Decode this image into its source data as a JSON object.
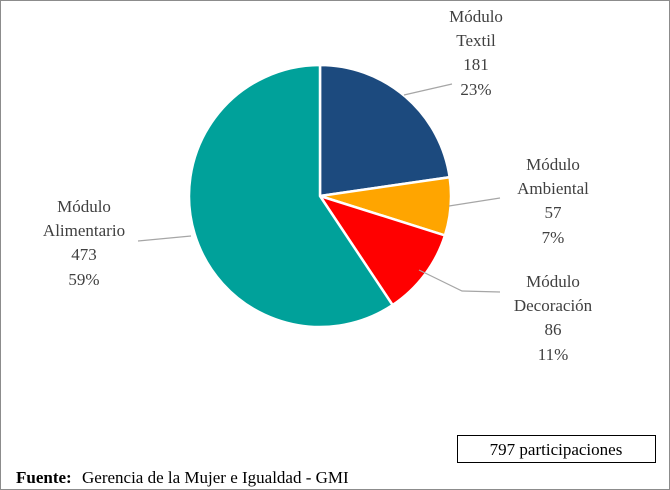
{
  "chart_data": {
    "type": "pie",
    "categories": [
      "Módulo Textil",
      "Módulo Ambiental",
      "Módulo Decoración",
      "Módulo Alimentario"
    ],
    "values": [
      181,
      57,
      86,
      473
    ],
    "percentages": [
      23,
      7,
      11,
      59
    ],
    "percentage_labels": [
      "23%",
      "7%",
      "11%",
      "59%"
    ],
    "colors": [
      "#1c4a7e",
      "#ffa500",
      "#ff0000",
      "#00a19a"
    ],
    "annotation": "797 participaciones",
    "source_label": "Fuente:",
    "source": "Gerencia de la Mujer e Igualdad - GMI"
  }
}
